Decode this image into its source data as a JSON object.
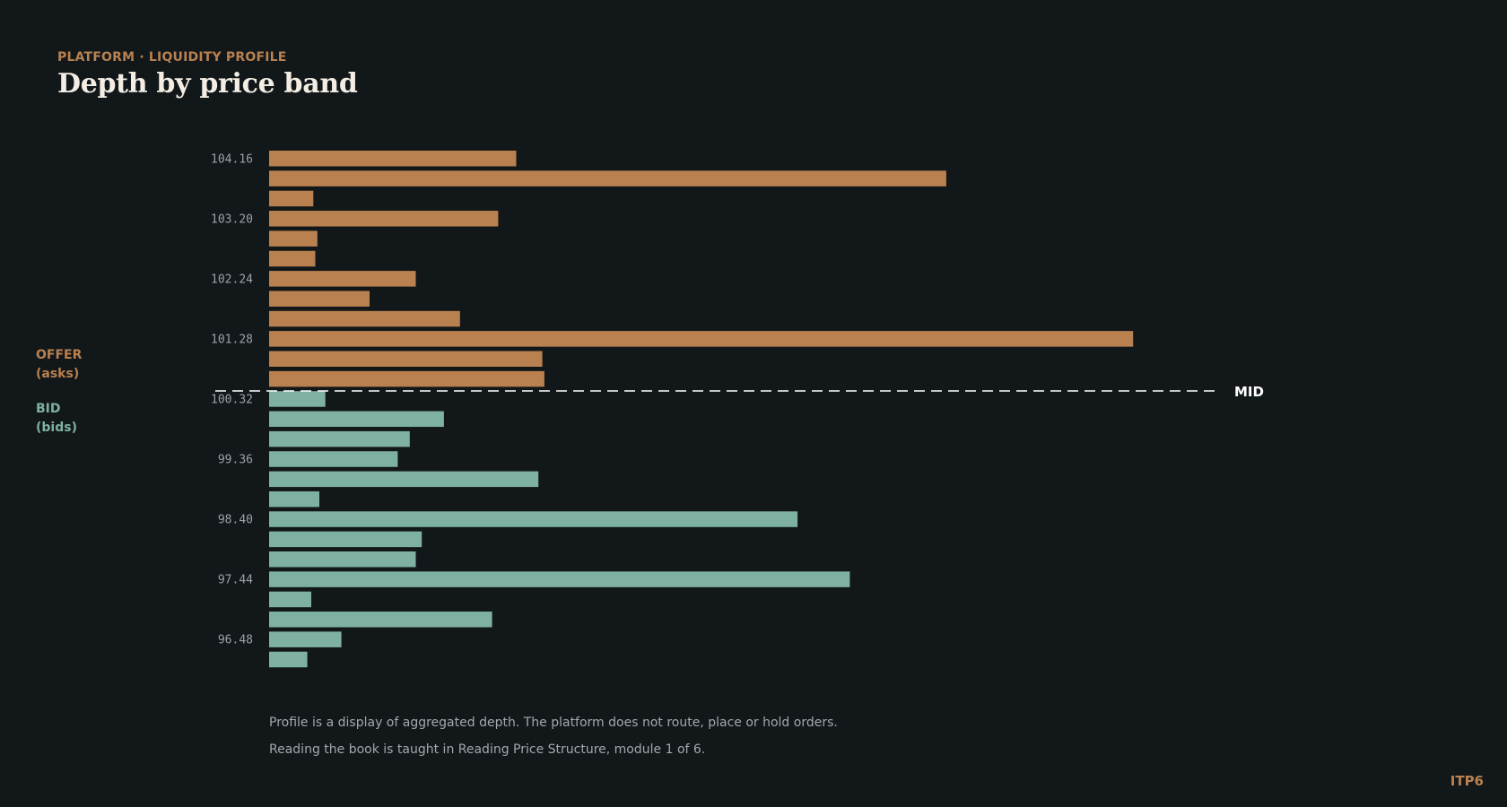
{
  "header": {
    "eyebrow": "PLATFORM · LIQUIDITY PROFILE",
    "title": "Depth by price band"
  },
  "legend": {
    "offer_label": "OFFER",
    "offer_sub": "(asks)",
    "bid_label": "BID",
    "bid_sub": "(bids)"
  },
  "colors": {
    "background": "#12171a",
    "offer": "#b8814f",
    "bid": "#7fb1a3",
    "mid_line": "#ffffff",
    "muted_text": "#a2a8ab"
  },
  "chart_data": {
    "type": "bar",
    "orientation": "horizontal",
    "mid_label": "MID",
    "tick_labels": [
      "104.16",
      "103.20",
      "102.24",
      "101.28",
      "100.32",
      "99.36",
      "98.40",
      "97.44",
      "96.48"
    ],
    "series": [
      {
        "name": "OFFER",
        "values": [
          123,
          337,
          22,
          114,
          24,
          23,
          73,
          50,
          95,
          430,
          136,
          137
        ]
      },
      {
        "name": "BID",
        "values": [
          28,
          87,
          70,
          64,
          134,
          25,
          263,
          76,
          73,
          289,
          21,
          111,
          36,
          19
        ]
      }
    ],
    "grid": false
  },
  "footnotes": [
    "Profile is a display of aggregated depth. The platform does not route, place or hold orders.",
    "Reading the book is taught in Reading Price Structure, module 1 of 6."
  ],
  "brand": "ITP6"
}
